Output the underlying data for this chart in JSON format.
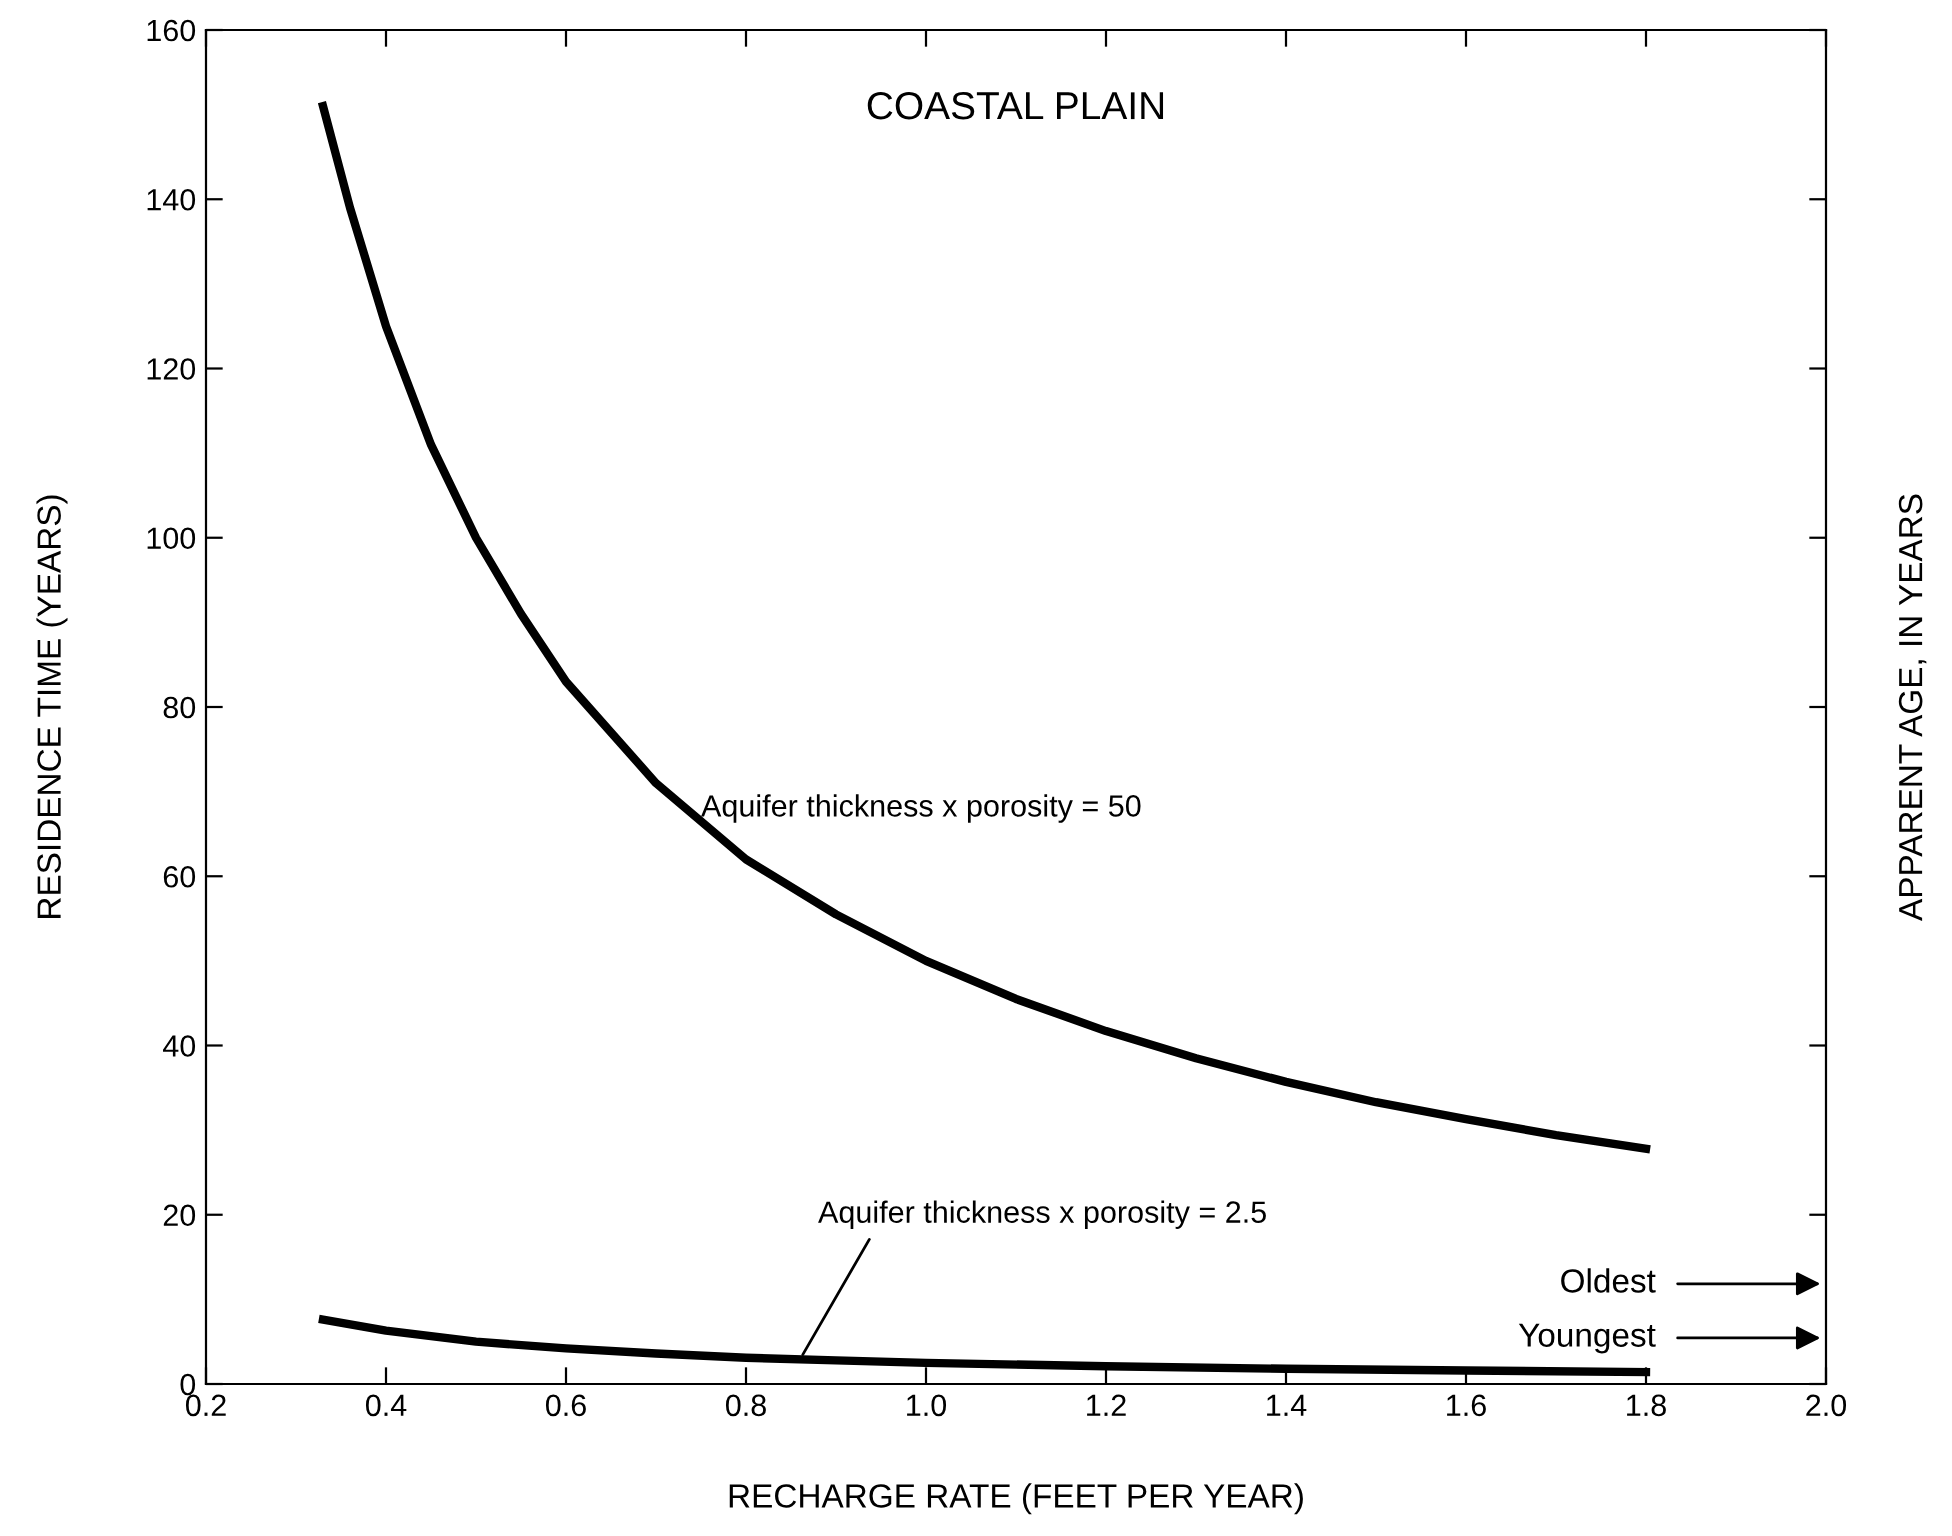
{
  "chart_data": {
    "type": "line",
    "title": "COASTAL PLAIN",
    "xlabel": "RECHARGE RATE (FEET PER YEAR)",
    "ylabel": "RESIDENCE TIME (YEARS)",
    "y2label": "APPARENT AGE, IN YEARS",
    "xlim": [
      0.2,
      2.0
    ],
    "xticks": [
      0.2,
      0.4,
      0.6,
      0.8,
      {
        "value": 1.0,
        "label": "1.0"
      },
      1.2,
      1.4,
      1.6,
      1.8,
      {
        "value": 2.0,
        "label": "2.0"
      }
    ],
    "ylim": [
      0,
      160
    ],
    "yticks": [
      0,
      20,
      40,
      60,
      80,
      100,
      120,
      140,
      160
    ],
    "grid": false,
    "marker": "none",
    "line_style": "solid",
    "series": [
      {
        "color": "#000000",
        "x": [
          0.33,
          0.36,
          0.4,
          0.45,
          0.5,
          0.55,
          0.6,
          0.7,
          0.8,
          0.9,
          1.0,
          1.1,
          1.2,
          1.3,
          1.4,
          1.5,
          1.6,
          1.7,
          1.8
        ],
        "values": [
          151,
          139,
          125,
          111,
          100,
          91,
          83,
          71,
          62,
          55.5,
          50,
          45.5,
          41.7,
          38.5,
          35.7,
          33.3,
          31.3,
          29.4,
          27.8
        ]
      },
      {
        "color": "#000000",
        "x": [
          0.33,
          0.4,
          0.5,
          0.6,
          0.7,
          0.8,
          0.9,
          1.0,
          1.2,
          1.4,
          1.6,
          1.8
        ],
        "values": [
          7.6,
          6.3,
          5,
          4.2,
          3.6,
          3.1,
          2.8,
          2.5,
          2.1,
          1.8,
          1.6,
          1.4
        ]
      }
    ],
    "annotations": [
      {
        "text": "Aquifer thickness x porosity = 50",
        "x": 0.75,
        "y": 68
      },
      {
        "text": "Aquifer thickness x porosity = 2.5",
        "x": 0.86,
        "y": 2.9
      },
      "Oldest",
      "Youngest"
    ]
  }
}
